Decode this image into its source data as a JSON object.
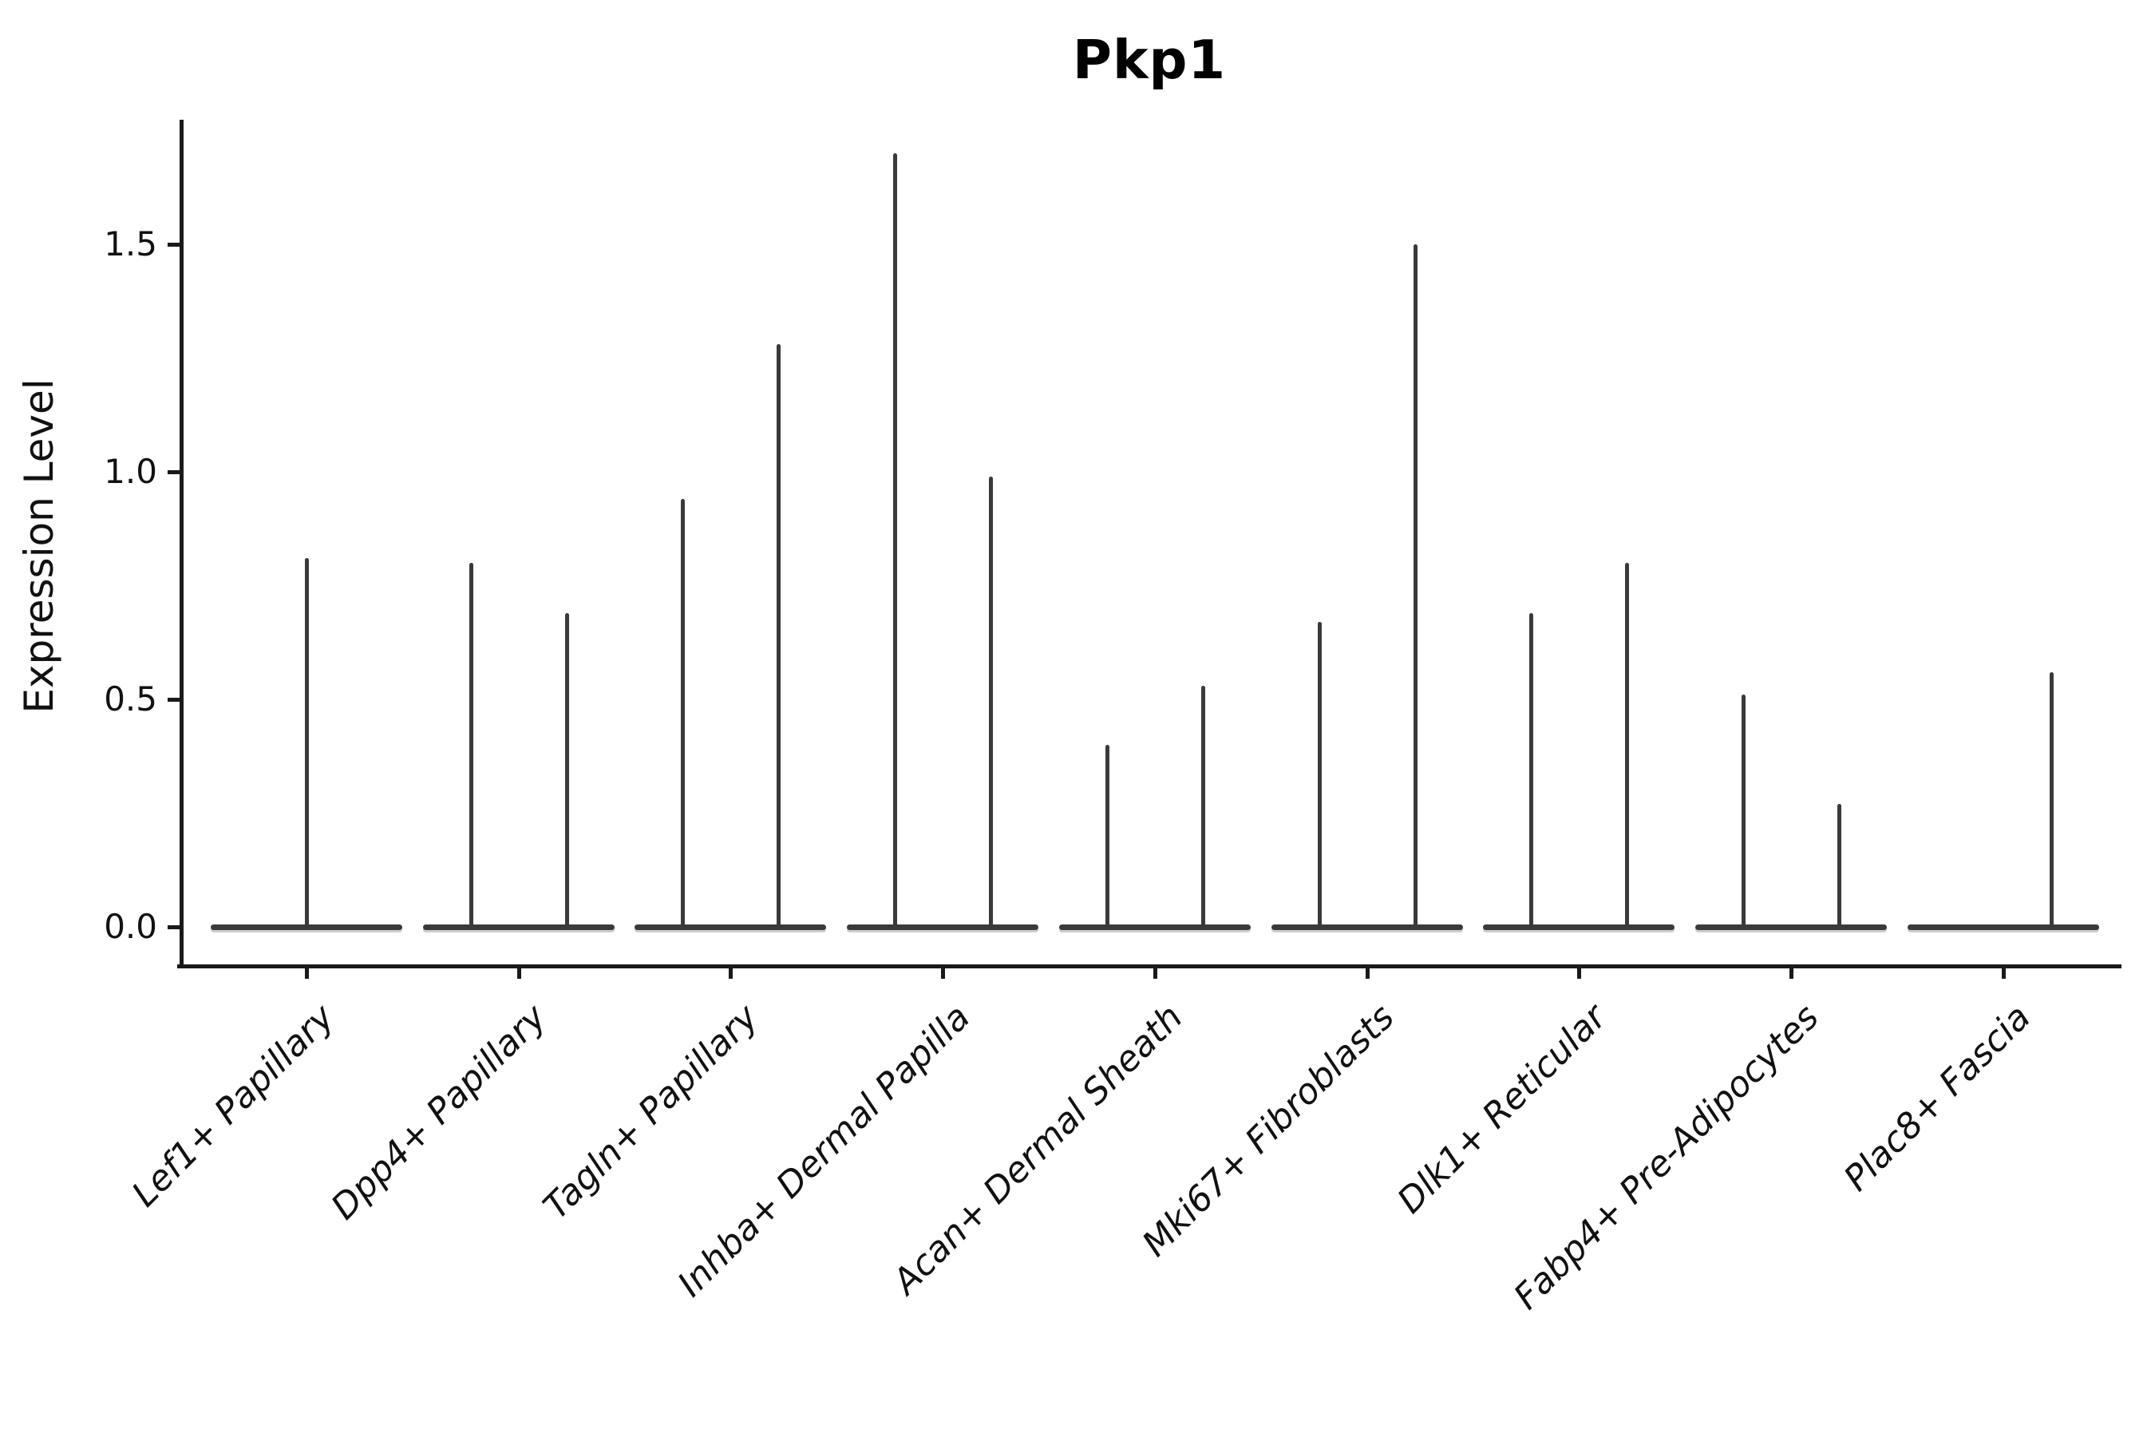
{
  "title": "Pkp1",
  "axes": {
    "y_label": "Expression Level",
    "y_tick_labels": [
      "0.0",
      "0.5",
      "1.0",
      "1.5"
    ]
  },
  "colors": {
    "violin": "#3a3a3a",
    "axis": "#1a1a1a",
    "text": "#111111",
    "background": "#ffffff"
  },
  "chart_data": {
    "type": "violin",
    "title": "Pkp1",
    "xlabel": "",
    "ylabel": "Expression Level",
    "ylim": [
      -0.09,
      1.78
    ],
    "y_ticks": [
      0.0,
      0.5,
      1.0,
      1.5
    ],
    "grid": false,
    "legend": "none",
    "style": "near-zero density violins: flat baseline pancake at 0 with thin spike up to max expression; two dodged half-violins per category where two split groups are present",
    "categories": [
      "Lef1+ Papillary",
      "Dpp4+ Papillary",
      "Tagln+ Papillary",
      "Inhba+ Dermal Papilla",
      "Acan+ Dermal Sheath",
      "Mki67+ Fibroblasts",
      "Dlk1+ Reticular",
      "Fabp4+ Pre-Adipocytes",
      "Plac8+ Fascia"
    ],
    "violins": [
      {
        "category": "Lef1+ Papillary",
        "spikes": [
          {
            "offset": "center",
            "max": 0.81
          }
        ]
      },
      {
        "category": "Dpp4+ Papillary",
        "spikes": [
          {
            "offset": "left",
            "max": 0.8
          },
          {
            "offset": "right",
            "max": 0.69
          }
        ]
      },
      {
        "category": "Tagln+ Papillary",
        "spikes": [
          {
            "offset": "left",
            "max": 0.94
          },
          {
            "offset": "right",
            "max": 1.28
          }
        ]
      },
      {
        "category": "Inhba+ Dermal Papilla",
        "spikes": [
          {
            "offset": "left",
            "max": 1.7
          },
          {
            "offset": "right",
            "max": 0.99
          }
        ]
      },
      {
        "category": "Acan+ Dermal Sheath",
        "spikes": [
          {
            "offset": "left",
            "max": 0.4
          },
          {
            "offset": "right",
            "max": 0.53
          }
        ]
      },
      {
        "category": "Mki67+ Fibroblasts",
        "spikes": [
          {
            "offset": "left",
            "max": 0.67
          },
          {
            "offset": "right",
            "max": 1.5
          }
        ]
      },
      {
        "category": "Dlk1+ Reticular",
        "spikes": [
          {
            "offset": "left",
            "max": 0.69
          },
          {
            "offset": "right",
            "max": 0.8
          }
        ]
      },
      {
        "category": "Fabp4+ Pre-Adipocytes",
        "spikes": [
          {
            "offset": "left",
            "max": 0.51
          },
          {
            "offset": "right",
            "max": 0.27
          }
        ]
      },
      {
        "category": "Plac8+ Fascia",
        "spikes": [
          {
            "offset": "right",
            "max": 0.56
          }
        ]
      }
    ],
    "baseline_value": 0.0
  }
}
